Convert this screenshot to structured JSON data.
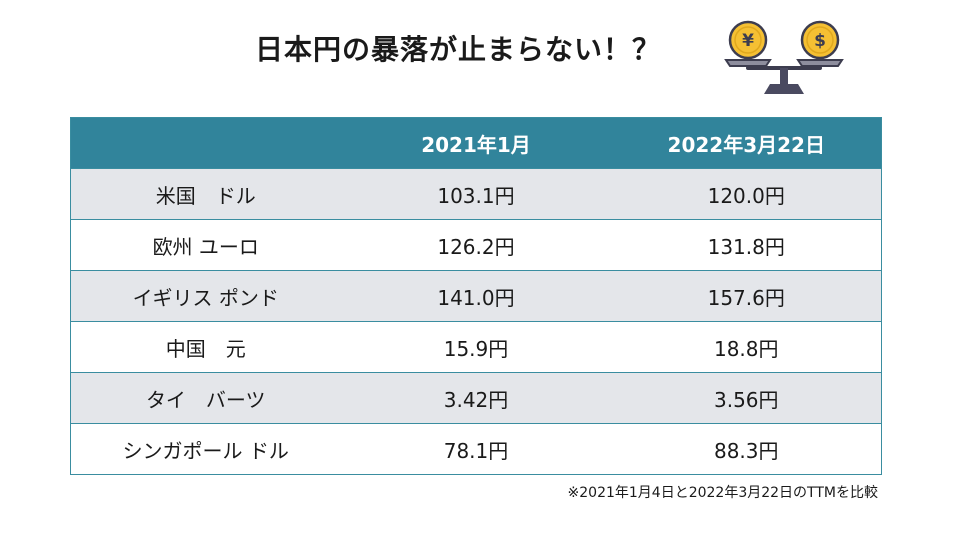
{
  "title": "日本円の暴落が止まらない！？",
  "icon": {
    "name": "balance-scale-yen-dollar",
    "coin_left_symbol": "¥",
    "coin_right_symbol": "$",
    "coin_color": "#f5c033",
    "beam_color": "#4a4a60"
  },
  "table": {
    "header_color": "#31849b",
    "columns": [
      "",
      "2021年1月",
      "2022年3月22日"
    ],
    "rows": [
      {
        "currency": "米国　ドル",
        "jan_2021": "103.1円",
        "mar_2022": "120.0円"
      },
      {
        "currency": "欧州 ユーロ",
        "jan_2021": "126.2円",
        "mar_2022": "131.8円"
      },
      {
        "currency": "イギリス ポンド",
        "jan_2021": "141.0円",
        "mar_2022": "157.6円"
      },
      {
        "currency": "中国　元",
        "jan_2021": "15.9円",
        "mar_2022": "18.8円"
      },
      {
        "currency": "タイ　バーツ",
        "jan_2021": "3.42円",
        "mar_2022": "3.56円"
      },
      {
        "currency": "シンガポール ドル",
        "jan_2021": "78.1円",
        "mar_2022": "88.3円"
      }
    ]
  },
  "footnote": "※2021年1月4日と2022年3月22日のTTMを比較"
}
